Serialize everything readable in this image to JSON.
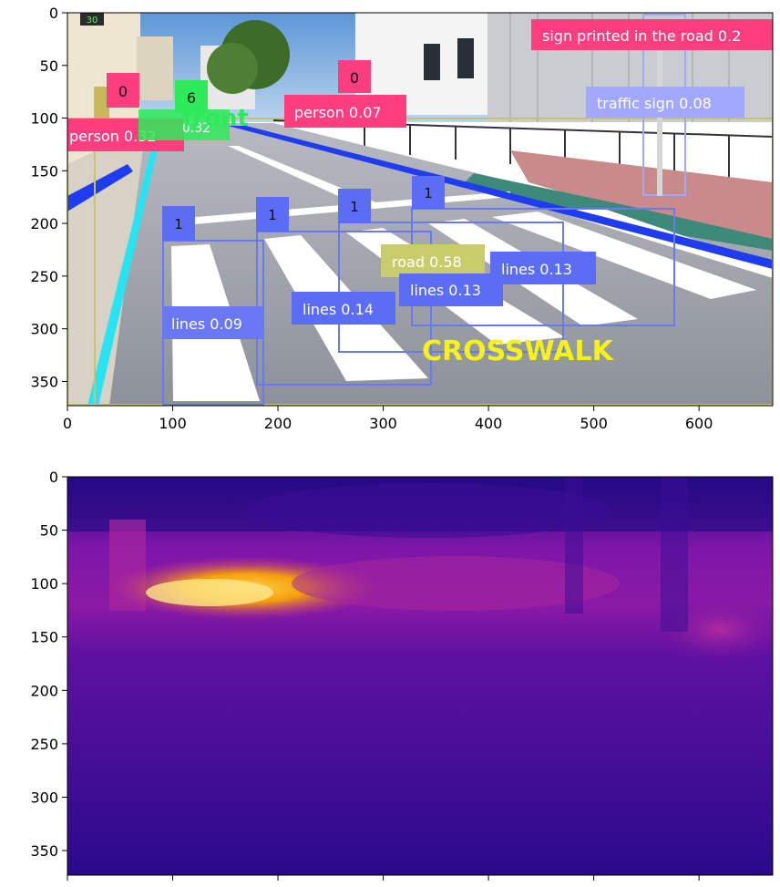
{
  "top_plot": {
    "x_ticks": [
      "0",
      "100",
      "200",
      "300",
      "400",
      "500",
      "600"
    ],
    "y_ticks": [
      "0",
      "50",
      "100",
      "150",
      "200",
      "250",
      "300",
      "350"
    ],
    "scene": {
      "speed_sign": "30",
      "colors": {
        "sky": "#6fa8dc",
        "road": "#9a9ea6",
        "sidewalk": "#c98a8a",
        "building": "#f2f2f2"
      }
    },
    "detections": [
      {
        "label": "sign printed in the road 0.2",
        "color": "#ff3d7f"
      },
      {
        "label": "traffic sign 0.08",
        "color": "#a3a8ff"
      },
      {
        "label": "person 0.07",
        "color": "#ff3d7f"
      },
      {
        "label": "person 0.32",
        "color": "#ff3d7f"
      },
      {
        "label": "road 0.58",
        "color": "#c8cc6a"
      },
      {
        "label": "lines 0.13",
        "color": "#5b6cf5"
      },
      {
        "label": "lines 0.13",
        "color": "#5b6cf5"
      },
      {
        "label": "lines 0.14",
        "color": "#5b6cf5"
      },
      {
        "label": "lines 0.09",
        "color": "#6a78f5"
      }
    ],
    "class_ids": [
      "0",
      "0",
      "6",
      "1",
      "1",
      "1",
      "1"
    ],
    "overlay_text": {
      "crosswalk": "CROSSWALK",
      "green_word": "front",
      "green_small": "0.32"
    }
  },
  "bottom_plot": {
    "y_ticks": [
      "0",
      "50",
      "100",
      "150",
      "200",
      "250",
      "300",
      "350"
    ],
    "colormap": "plasma",
    "colors": {
      "far": "#2a0a8c",
      "mid": "#7e16a8",
      "near": "#f5a623"
    }
  }
}
